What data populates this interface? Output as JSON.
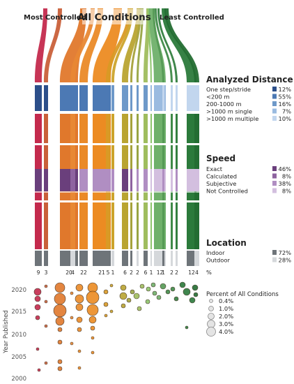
{
  "chart_data": {
    "type": "sankey-bubble",
    "header": {
      "left": "Most Controlled",
      "center": "All Conditions",
      "right": "Least Controlled"
    },
    "condition_columns": [
      {
        "count": "9",
        "color": "#c42a4d"
      },
      {
        "count": "3",
        "color": "#c9603a"
      },
      {
        "count": "20",
        "color": "#e0782c"
      },
      {
        "count": "4",
        "color": "#e88834"
      },
      {
        "count": "22",
        "color": "#ea8a28"
      },
      {
        "count": "21",
        "color": "#ec8b22"
      },
      {
        "count": "5",
        "color": "#d99a25"
      },
      {
        "count": "1",
        "color": "#cca42c"
      },
      {
        "count": "6",
        "color": "#b9a431"
      },
      {
        "count": "2",
        "color": "#a6a23b"
      },
      {
        "count": "2",
        "color": "#98a544"
      },
      {
        "count": "6",
        "color": "#9fbd5e"
      },
      {
        "count": "1",
        "color": "#8cc46a"
      },
      {
        "count": "12",
        "color": "#6fb06a"
      },
      {
        "count": "1",
        "color": "#559a55"
      },
      {
        "count": "2",
        "color": "#3f8a48"
      },
      {
        "count": "2",
        "color": "#348040"
      },
      {
        "count": "12",
        "color": "#2b7a3b"
      },
      {
        "count": "4",
        "color": "#236d32"
      }
    ],
    "legends": [
      {
        "title": "Analyzed Distance",
        "items": [
          {
            "label": "One step/stride",
            "value": "12%",
            "color": "#2c4f8a"
          },
          {
            "label": "<200 m",
            "value": "55%",
            "color": "#4c79b4"
          },
          {
            "label": "200-1000 m",
            "value": "16%",
            "color": "#6e99c9"
          },
          {
            "label": ">1000 m single",
            "value": "7%",
            "color": "#9bbbe0"
          },
          {
            "label": ">1000 m multiple",
            "value": "10%",
            "color": "#c2d6ee"
          }
        ]
      },
      {
        "title": "Speed",
        "items": [
          {
            "label": "Exact",
            "value": "46%",
            "color": "#6a3f7c"
          },
          {
            "label": "Calculated",
            "value": "8%",
            "color": "#8e63a0"
          },
          {
            "label": "Subjective",
            "value": "38%",
            "color": "#b08ec2"
          },
          {
            "label": "Not Controlled",
            "value": "8%",
            "color": "#d3bfdf"
          }
        ]
      },
      {
        "title": "Location",
        "items": [
          {
            "label": "Indoor",
            "value": "72%",
            "color": "#6e7479"
          },
          {
            "label": "Outdoor",
            "value": "28%",
            "color": "#d5d8db"
          }
        ]
      }
    ],
    "count_axis_label": "%",
    "bubble_plot": {
      "ylabel": "Year Published",
      "yticks": [
        "2020",
        "2015",
        "2010",
        "2005",
        "2000"
      ],
      "size_legend": {
        "title": "Percent of All Conditions",
        "items": [
          "0.4%",
          "1.0%",
          "2.0%",
          "3.0%",
          "4.0%"
        ]
      }
    }
  }
}
